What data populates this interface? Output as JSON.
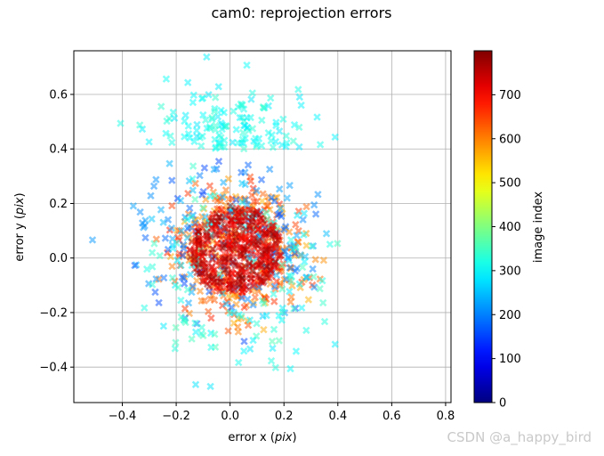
{
  "chart_data": {
    "type": "scatter",
    "title": "cam0: reprojection errors",
    "xlabel_main": "error x (",
    "xlabel_italic": "pix",
    "xlabel_end": ")",
    "ylabel_main": "error y (",
    "ylabel_italic": "pix",
    "ylabel_end": ")",
    "xlim": [
      -0.58,
      0.82
    ],
    "ylim": [
      -0.53,
      0.76
    ],
    "xticks": [
      -0.4,
      -0.2,
      0.0,
      0.2,
      0.4,
      0.6,
      0.8
    ],
    "xtick_labels": [
      "−0.4",
      "−0.2",
      "0.0",
      "0.2",
      "0.4",
      "0.6",
      "0.8"
    ],
    "yticks": [
      -0.4,
      -0.2,
      0.0,
      0.2,
      0.4,
      0.6
    ],
    "ytick_labels": [
      "−0.4",
      "−0.2",
      "0.0",
      "0.2",
      "0.4",
      "0.6"
    ],
    "grid": true,
    "marker": "X",
    "marker_alpha": 0.5,
    "colormap": "jet",
    "colorbar": {
      "label": "image index",
      "range": [
        0,
        800
      ],
      "ticks": [
        0,
        100,
        200,
        300,
        400,
        500,
        600,
        700
      ],
      "tick_labels": [
        "0",
        "100",
        "200",
        "300",
        "400",
        "500",
        "600",
        "700"
      ]
    },
    "point_groups": [
      {
        "image_index_range": [
          680,
          800
        ],
        "center": [
          0.02,
          0.03
        ],
        "spread": [
          0.12,
          0.12
        ]
      },
      {
        "image_index_range": [
          560,
          680
        ],
        "center": [
          0.02,
          0.02
        ],
        "spread": [
          0.17,
          0.17
        ]
      },
      {
        "image_index_range": [
          150,
          260
        ],
        "center": [
          -0.02,
          0.06
        ],
        "spread": [
          0.22,
          0.17
        ]
      },
      {
        "image_index_range": [
          280,
          340
        ],
        "center": [
          0.0,
          0.45
        ],
        "spread": [
          0.2,
          0.15
        ]
      },
      {
        "image_index_range": [
          280,
          360
        ],
        "center": [
          0.02,
          -0.08
        ],
        "spread": [
          0.24,
          0.24
        ]
      }
    ]
  },
  "watermark": "CSDN @a_happy_bird"
}
